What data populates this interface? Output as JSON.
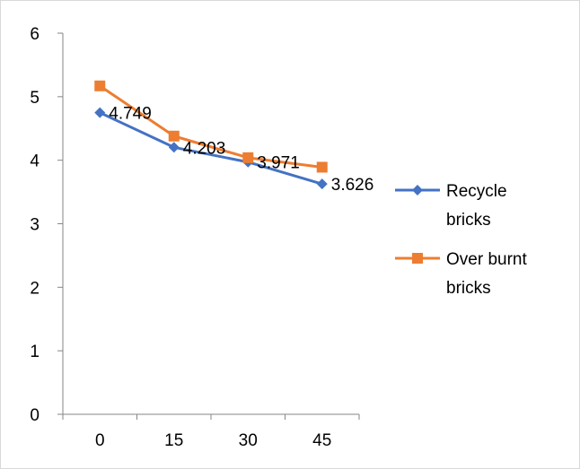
{
  "chart_data": {
    "type": "line",
    "title": "",
    "xlabel": "",
    "ylabel": "",
    "categories": [
      "0",
      "15",
      "30",
      "45"
    ],
    "y_ticks": [
      "0",
      "1",
      "2",
      "3",
      "4",
      "5",
      "6"
    ],
    "ylim": [
      0,
      6
    ],
    "grid": false,
    "legend_position": "right",
    "series": [
      {
        "name": "Recycle bricks",
        "legend_lines": [
          "Recycle",
          "bricks"
        ],
        "color": "#4472c4",
        "marker": "diamond",
        "values": [
          4.749,
          4.203,
          3.971,
          3.626
        ],
        "data_labels": [
          "4.749",
          "4.203",
          "3.971",
          "3.626"
        ]
      },
      {
        "name": "Over burnt bricks",
        "legend_lines": [
          "Over burnt",
          "bricks"
        ],
        "color": "#ed7d31",
        "marker": "square",
        "values": [
          5.17,
          4.38,
          4.04,
          3.89
        ]
      }
    ]
  }
}
